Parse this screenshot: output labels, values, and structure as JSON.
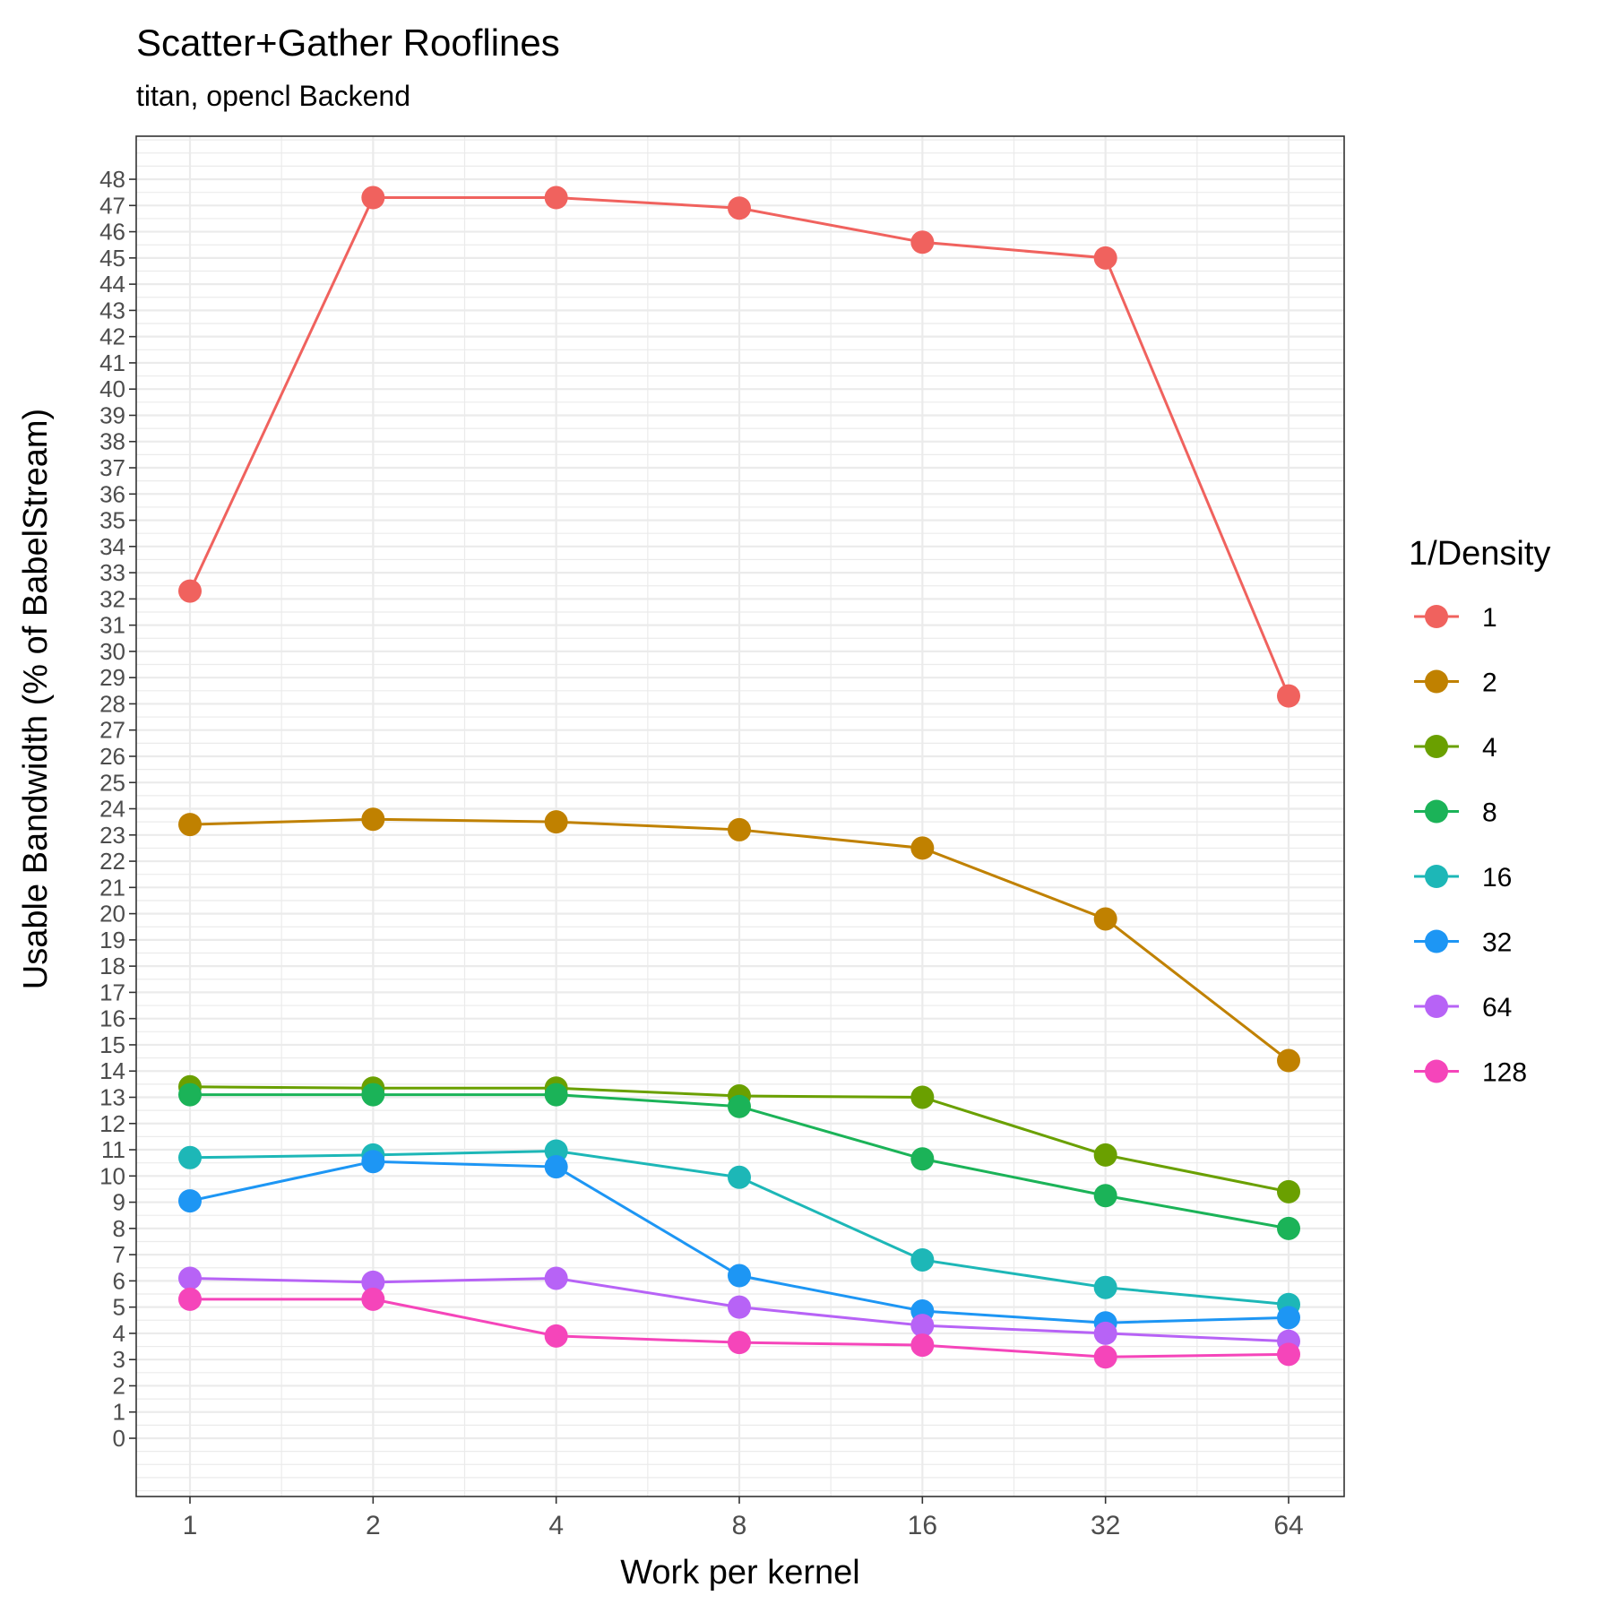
{
  "chart_data": {
    "type": "line",
    "title": "Scatter+Gather Rooflines",
    "subtitle": "titan, opencl Backend",
    "xlabel": "Work per kernel",
    "ylabel": "Usable Bandwidth (% of BabelStream)",
    "x_scale": "log2",
    "x": [
      1,
      2,
      4,
      8,
      16,
      32,
      64
    ],
    "x_tick_labels": [
      "1",
      "2",
      "4",
      "8",
      "16",
      "32",
      "64"
    ],
    "ylim": [
      -2.3,
      50
    ],
    "y_ticks": [
      0,
      1,
      2,
      3,
      4,
      5,
      6,
      7,
      8,
      9,
      10,
      11,
      12,
      13,
      14,
      15,
      16,
      17,
      18,
      19,
      20,
      21,
      22,
      23,
      24,
      25,
      26,
      27,
      28,
      29,
      30,
      31,
      32,
      33,
      34,
      35,
      36,
      37,
      38,
      39,
      40,
      41,
      42,
      43,
      44,
      45,
      46,
      47,
      48
    ],
    "grid": true,
    "legend": {
      "title": "1/Density",
      "position": "right"
    },
    "series": [
      {
        "name": "1",
        "color": "#F8766D",
        "values": [
          32.3,
          47.3,
          47.3,
          46.9,
          45.6,
          45.0,
          28.3
        ]
      },
      {
        "name": "2",
        "color": "#C49A00",
        "values": [
          23.4,
          23.6,
          23.5,
          23.2,
          22.5,
          19.8,
          14.4
        ]
      },
      {
        "name": "4",
        "color": "#53B400",
        "values": [
          13.4,
          13.35,
          13.35,
          13.05,
          13.0,
          10.8,
          9.4
        ]
      },
      {
        "name": "8",
        "color": "#00C094",
        "values": [
          13.1,
          13.1,
          13.1,
          12.65,
          10.65,
          9.25,
          8.0
        ]
      },
      {
        "name": "16",
        "color": "#00B6EB",
        "values": [
          10.7,
          10.8,
          10.95,
          9.95,
          6.8,
          5.75,
          5.1
        ]
      },
      {
        "name": "32",
        "color": "#06A4FF",
        "values": [
          9.05,
          10.55,
          10.35,
          6.2,
          4.85,
          4.4,
          4.6
        ]
      },
      {
        "name": "64",
        "color": "#A58AFF",
        "values": [
          6.1,
          5.95,
          6.1,
          5.0,
          4.3,
          4.0,
          3.7
        ]
      },
      {
        "name": "128",
        "color": "#FB61D7",
        "values": [
          5.3,
          5.3,
          3.9,
          3.65,
          3.55,
          3.1,
          3.2
        ]
      }
    ],
    "series_colors_rendered": [
      "#F0625E",
      "#C08100",
      "#6AA000",
      "#1BB358",
      "#1DB7B7",
      "#1D96F4",
      "#B763F6",
      "#F545BA"
    ]
  }
}
